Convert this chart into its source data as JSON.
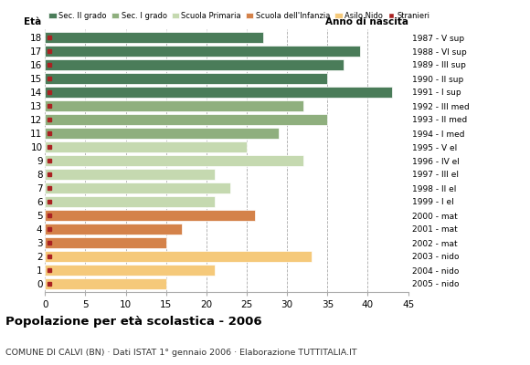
{
  "ages": [
    18,
    17,
    16,
    15,
    14,
    13,
    12,
    11,
    10,
    9,
    8,
    7,
    6,
    5,
    4,
    3,
    2,
    1,
    0
  ],
  "values": [
    27,
    39,
    37,
    35,
    43,
    32,
    35,
    29,
    25,
    32,
    21,
    23,
    21,
    26,
    17,
    15,
    33,
    21,
    15
  ],
  "categories": {
    "sec2": [
      18,
      17,
      16,
      15,
      14
    ],
    "sec1": [
      13,
      12,
      11
    ],
    "primaria": [
      10,
      9,
      8,
      7,
      6
    ],
    "infanzia": [
      5,
      4,
      3
    ],
    "nido": [
      2,
      1,
      0
    ]
  },
  "colors": {
    "sec2": "#4a7c59",
    "sec1": "#8faf7e",
    "primaria": "#c5d9b0",
    "infanzia": "#d4824a",
    "nido": "#f5c97a",
    "stranieri": "#aa2222"
  },
  "anno_nascita": {
    "18": "1987 - V sup",
    "17": "1988 - VI sup",
    "16": "1989 - III sup",
    "15": "1990 - II sup",
    "14": "1991 - I sup",
    "13": "1992 - III med",
    "12": "1993 - II med",
    "11": "1994 - I med",
    "10": "1995 - V el",
    "9": "1996 - IV el",
    "8": "1997 - III el",
    "7": "1998 - II el",
    "6": "1999 - I el",
    "5": "2000 - mat",
    "4": "2001 - mat",
    "3": "2002 - mat",
    "2": "2003 - nido",
    "1": "2004 - nido",
    "0": "2005 - nido"
  },
  "legend_labels": [
    "Sec. II grado",
    "Sec. I grado",
    "Scuola Primaria",
    "Scuola dell'Infanzia",
    "Asilo Nido",
    "Stranieri"
  ],
  "legend_colors": [
    "#4a7c59",
    "#8faf7e",
    "#c5d9b0",
    "#d4824a",
    "#f5c97a",
    "#aa2222"
  ],
  "title": "Popolazione per età scolastica - 2006",
  "subtitle": "COMUNE DI CALVI (BN) · Dati ISTAT 1° gennaio 2006 · Elaborazione TUTTITALIA.IT",
  "xlim": [
    0,
    45
  ],
  "xticks": [
    0,
    5,
    10,
    15,
    20,
    25,
    30,
    35,
    40,
    45
  ],
  "bg_color": "#ffffff",
  "bar_height": 0.78
}
